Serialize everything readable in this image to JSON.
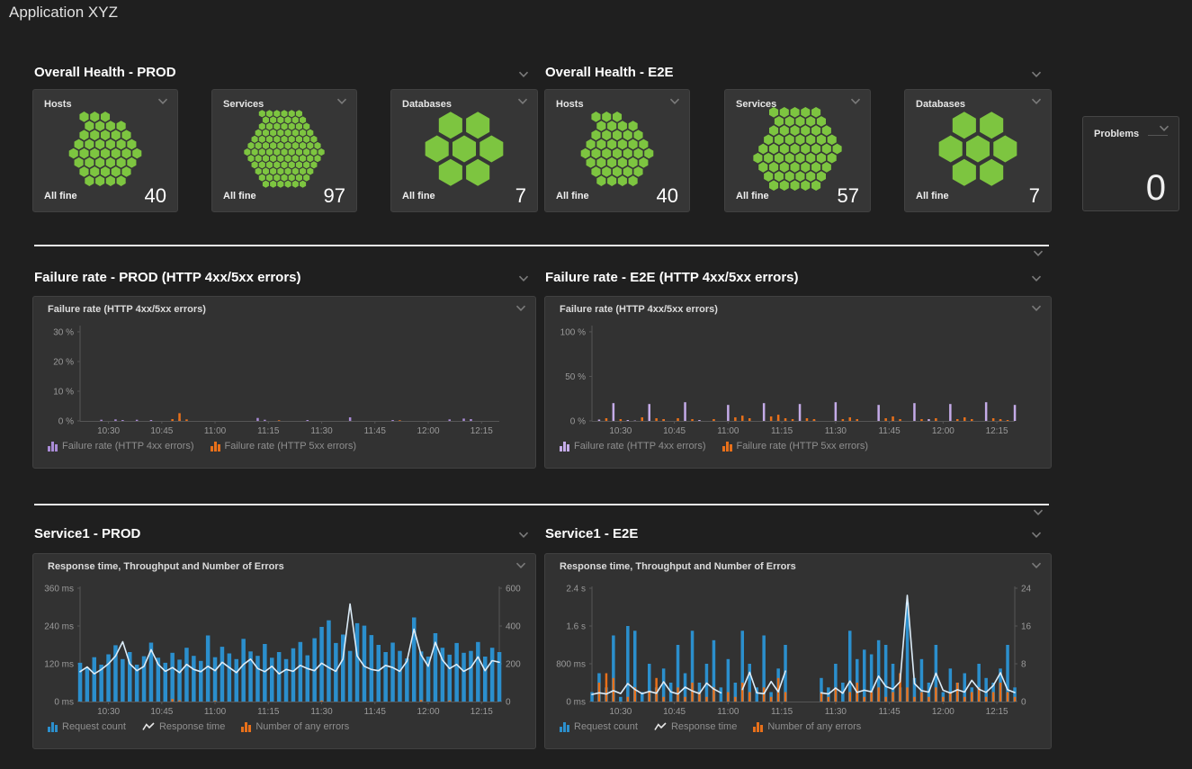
{
  "page": {
    "title": "Application XYZ"
  },
  "colors": {
    "green": "#7dc540",
    "blue": "#2b8fcd",
    "orange": "#e8701a",
    "purple": "#a98bd6",
    "response_line": "#dcecf8",
    "divider": "#ededed",
    "background": "#1f1f1f",
    "tile": "#363636"
  },
  "health": {
    "prod": {
      "title": "Overall Health - PROD",
      "tiles": [
        {
          "label": "Hosts",
          "status": "All fine",
          "count": 40
        },
        {
          "label": "Services",
          "status": "All fine",
          "count": 97
        },
        {
          "label": "Databases",
          "status": "All fine",
          "count": 7
        }
      ]
    },
    "e2e": {
      "title": "Overall Health - E2E",
      "tiles": [
        {
          "label": "Hosts",
          "status": "All fine",
          "count": 40
        },
        {
          "label": "Services",
          "status": "All fine",
          "count": 57
        },
        {
          "label": "Databases",
          "status": "All fine",
          "count": 7
        }
      ]
    },
    "problems": {
      "label": "Problems",
      "value": "0"
    }
  },
  "row_titles": {
    "failure_prod": "Failure rate - PROD (HTTP 4xx/5xx errors)",
    "failure_e2e": "Failure rate - E2E (HTTP 4xx/5xx errors)",
    "service_prod": "Service1 - PROD",
    "service_e2e": "Service1 - E2E"
  },
  "chart_data": [
    {
      "id": "failure-rate-prod",
      "type": "bar",
      "tile_title": "Failure rate (HTTP 4xx/5xx errors)",
      "x": {
        "start_min": 622,
        "step_min": 2,
        "count": 60,
        "tick_minutes": [
          630,
          645,
          660,
          675,
          690,
          705,
          720,
          735
        ],
        "tick_labels": [
          "10:30",
          "10:45",
          "11:00",
          "11:15",
          "11:30",
          "11:45",
          "12:00",
          "12:15"
        ]
      },
      "y_left": {
        "tick_values": [
          0,
          10,
          20,
          30
        ],
        "tick_labels": [
          "0 %",
          "10 %",
          "20 %",
          "30 %"
        ],
        "max": 31.5
      },
      "series": [
        {
          "name": "Failure rate (HTTP 4xx errors)",
          "type": "bar",
          "axis": "left",
          "color": "#a98bd6",
          "bar_width": 2.5,
          "values": [
            0,
            0,
            0,
            0.4,
            0,
            0.5,
            0.3,
            0,
            0.4,
            0,
            0.3,
            0,
            0,
            0,
            0.5,
            0,
            0,
            0,
            0,
            0,
            0,
            0,
            0,
            0,
            0,
            1,
            0.4,
            0,
            0,
            0,
            0,
            0,
            0.3,
            0,
            0,
            0,
            0,
            0,
            1.2,
            0,
            0,
            0,
            0,
            0,
            0.3,
            0,
            0,
            0,
            0,
            0,
            0,
            0,
            0.5,
            0,
            0.8,
            0.6,
            0,
            0,
            0,
            0
          ]
        },
        {
          "name": "Failure rate (HTTP 5xx errors)",
          "type": "bar",
          "axis": "left",
          "color": "#e8701a",
          "bar_width": 2.5,
          "values": [
            0,
            0,
            0,
            0,
            0,
            0,
            0,
            0,
            0,
            0,
            0,
            0,
            0,
            0.6,
            2.6,
            0.5,
            0,
            0,
            0,
            0,
            0,
            0,
            0,
            0,
            0,
            0,
            0,
            0,
            0.2,
            0,
            0,
            0,
            0,
            0,
            0,
            0,
            0,
            0,
            0,
            0,
            0,
            0,
            0,
            0,
            0,
            0.2,
            0,
            0,
            0,
            0,
            0,
            0,
            0,
            0,
            0,
            0,
            0,
            0,
            0,
            0
          ]
        }
      ]
    },
    {
      "id": "failure-rate-e2e",
      "type": "bar",
      "tile_title": "Failure rate (HTTP 4xx/5xx errors)",
      "x": {
        "start_min": 622,
        "step_min": 2,
        "count": 60,
        "tick_minutes": [
          630,
          645,
          660,
          675,
          690,
          705,
          720,
          735
        ],
        "tick_labels": [
          "10:30",
          "10:45",
          "11:00",
          "11:15",
          "11:30",
          "11:45",
          "12:00",
          "12:15"
        ]
      },
      "y_left": {
        "tick_values": [
          0,
          50,
          100
        ],
        "tick_labels": [
          "0 %",
          "50 %",
          "100 %"
        ],
        "max": 105
      },
      "series": [
        {
          "name": "Failure rate (HTTP 4xx errors)",
          "type": "bar",
          "axis": "left",
          "color": "#c4abe8",
          "bar_width": 2.5,
          "values": [
            0,
            1.5,
            0,
            20,
            0,
            1,
            0.4,
            0,
            19,
            0,
            2,
            0,
            0,
            21,
            0,
            1,
            0,
            0.4,
            0,
            18,
            0,
            2,
            0,
            0,
            20,
            0,
            1.5,
            0.4,
            0,
            19,
            0,
            1,
            0,
            0,
            21,
            0,
            1.5,
            0.4,
            0,
            0,
            18,
            0,
            1,
            0,
            0,
            20,
            0,
            2,
            0.4,
            0,
            19,
            0,
            1.5,
            0.4,
            0,
            21,
            0,
            1,
            0,
            18
          ]
        },
        {
          "name": "Failure rate (HTTP 5xx errors)",
          "type": "bar",
          "axis": "left",
          "color": "#e8701a",
          "bar_width": 2.5,
          "values": [
            0,
            0,
            3,
            0,
            2,
            0,
            0,
            4,
            0,
            3,
            2,
            0,
            3,
            0,
            2,
            0,
            0,
            2,
            0,
            0,
            4,
            6,
            3,
            0,
            0,
            5,
            7,
            3,
            2,
            0,
            3,
            2,
            0,
            0,
            0,
            2,
            4,
            2,
            0,
            0,
            0,
            3,
            5,
            2,
            0,
            0,
            2,
            0,
            3,
            0,
            0,
            2,
            4,
            2,
            0,
            0,
            3,
            2,
            1,
            0
          ]
        }
      ]
    },
    {
      "id": "service1-prod",
      "type": "bar",
      "tile_title": "Response time, Throughput and Number of Errors",
      "x": {
        "start_min": 622,
        "step_min": 2,
        "count": 60,
        "tick_minutes": [
          630,
          645,
          660,
          675,
          690,
          705,
          720,
          735
        ],
        "tick_labels": [
          "10:30",
          "10:45",
          "11:00",
          "11:15",
          "11:30",
          "11:45",
          "12:00",
          "12:15"
        ]
      },
      "y_left": {
        "tick_values": [
          0,
          120,
          240,
          360
        ],
        "tick_labels": [
          "0 ms",
          "120 ms",
          "240 ms",
          "360 ms"
        ],
        "max": 360
      },
      "y_right": {
        "tick_values": [
          0,
          200,
          400,
          600
        ],
        "tick_labels": [
          "0",
          "200",
          "400",
          "600"
        ],
        "max": 600
      },
      "series": [
        {
          "name": "Request count",
          "type": "bar",
          "axis": "right",
          "color": "#2b8fcd",
          "bar_width": 4.5,
          "values": [
            205,
            180,
            235,
            195,
            250,
            298,
            225,
            262,
            195,
            240,
            312,
            232,
            205,
            258,
            222,
            285,
            242,
            215,
            350,
            235,
            290,
            255,
            225,
            332,
            265,
            242,
            305,
            232,
            262,
            225,
            282,
            315,
            245,
            335,
            395,
            430,
            310,
            355,
            268,
            415,
            402,
            352,
            300,
            262,
            312,
            268,
            228,
            445,
            265,
            238,
            362,
            285,
            248,
            310,
            258,
            268,
            315,
            238,
            285,
            262
          ]
        },
        {
          "name": "Number of any errors",
          "type": "bar",
          "axis": "right",
          "color": "#e8701a",
          "bar_width": 2.5,
          "values": [
            0,
            0,
            0,
            0,
            0,
            0,
            0,
            0,
            0,
            0,
            0,
            0,
            0,
            14,
            6,
            0,
            0,
            0,
            0,
            4,
            0,
            0,
            0,
            0,
            0,
            0,
            0,
            0,
            0,
            0,
            0,
            0,
            0,
            0,
            5,
            0,
            0,
            0,
            0,
            0,
            0,
            0,
            0,
            0,
            0,
            0,
            0,
            0,
            8,
            0,
            0,
            0,
            5,
            0,
            0,
            0,
            0,
            0,
            0,
            0
          ],
          "legend_order": 2
        },
        {
          "name": "Response time",
          "type": "line",
          "axis": "left",
          "color": "#dcecf8",
          "values": [
            95,
            110,
            88,
            102,
            120,
            145,
            190,
            120,
            98,
            112,
            165,
            118,
            96,
            108,
            92,
            118,
            102,
            95,
            112,
            98,
            125,
            108,
            92,
            118,
            135,
            105,
            95,
            112,
            88,
            102,
            96,
            115,
            105,
            98,
            122,
            108,
            96,
            135,
            310,
            145,
            112,
            102,
            98,
            115,
            108,
            96,
            128,
            230,
            148,
            112,
            188,
            132,
            105,
            118,
            96,
            108,
            142,
            98,
            130,
            125
          ],
          "legend_order": 1
        }
      ]
    },
    {
      "id": "service1-e2e",
      "type": "bar",
      "tile_title": "Response time, Throughput and Number of Errors",
      "x": {
        "start_min": 622,
        "step_min": 2,
        "count": 60,
        "tick_minutes": [
          630,
          645,
          660,
          675,
          690,
          705,
          720,
          735
        ],
        "tick_labels": [
          "10:30",
          "10:45",
          "11:00",
          "11:15",
          "11:30",
          "11:45",
          "12:00",
          "12:15"
        ]
      },
      "y_left": {
        "tick_values": [
          0,
          800,
          1600,
          2400
        ],
        "tick_labels": [
          "0 ms",
          "800 ms",
          "1.6 s",
          "2.4 s"
        ],
        "max": 2400
      },
      "y_right": {
        "tick_values": [
          0,
          8,
          16,
          24
        ],
        "tick_labels": [
          "0",
          "8",
          "16",
          "24"
        ],
        "max": 24
      },
      "series": [
        {
          "name": "Request count",
          "type": "bar",
          "axis": "right",
          "color": "#2b8fcd",
          "bar_width": 3.5,
          "values": [
            2,
            6,
            3,
            14,
            1,
            16,
            15,
            2,
            8,
            3,
            7,
            4,
            12,
            6,
            15,
            4,
            8,
            13,
            3,
            9,
            4,
            15,
            8,
            3,
            14,
            2,
            7,
            12,
            0,
            0,
            0,
            0,
            5,
            3,
            8,
            4,
            15,
            9,
            11,
            10,
            13,
            12,
            8,
            3,
            21,
            5,
            9,
            4,
            12,
            2,
            7,
            4,
            6,
            3,
            8,
            5,
            4,
            7,
            12,
            3
          ]
        },
        {
          "name": "Number of any errors",
          "type": "bar",
          "axis": "right",
          "color": "#e8701a",
          "bar_width": 2.5,
          "values": [
            0,
            4,
            6,
            5,
            0,
            1,
            3,
            0,
            2,
            5,
            1,
            0,
            3,
            1,
            4,
            2,
            1,
            3,
            0,
            2,
            1,
            4,
            2,
            0,
            3,
            1,
            5,
            2,
            0,
            0,
            0,
            0,
            2,
            1,
            3,
            0,
            2,
            4,
            1,
            2,
            3,
            1,
            2,
            6,
            3,
            1,
            2,
            1,
            3,
            1,
            2,
            4,
            1,
            2,
            3,
            1,
            2,
            4,
            2,
            1
          ],
          "legend_order": 2
        },
        {
          "name": "Response time",
          "type": "line",
          "axis": "left",
          "color": "#dcecf8",
          "values": [
            150,
            185,
            160,
            230,
            170,
            380,
            255,
            165,
            215,
            175,
            420,
            205,
            160,
            305,
            225,
            170,
            390,
            265,
            185,
            null,
            null,
            255,
            620,
            185,
            165,
            425,
            205,
            645,
            null,
            null,
            null,
            null,
            185,
            160,
            285,
            175,
            435,
            195,
            240,
            205,
            540,
            320,
            260,
            420,
            2250,
            380,
            230,
            200,
            600,
            240,
            180,
            250,
            200,
            450,
            260,
            195,
            340,
            610,
            250,
            190
          ],
          "legend_order": 1
        }
      ]
    }
  ]
}
